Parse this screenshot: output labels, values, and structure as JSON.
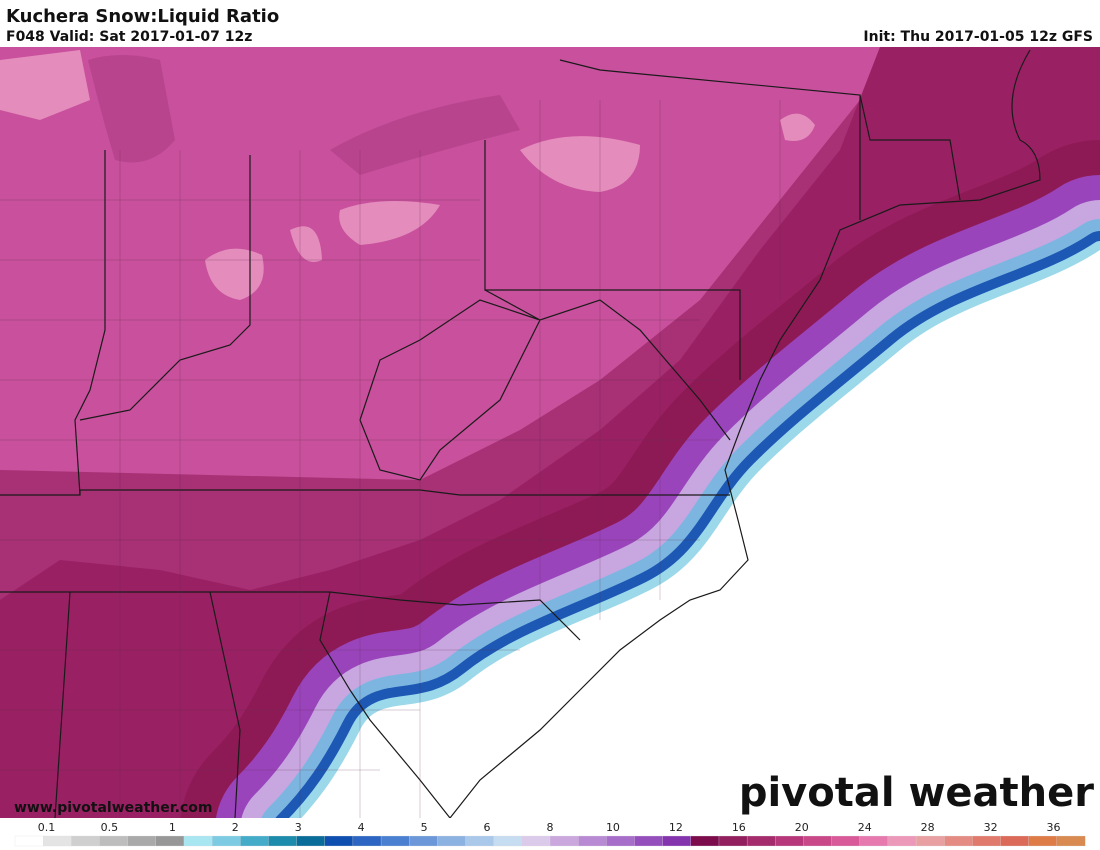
{
  "header": {
    "title": "Kuchera Snow:Liquid Ratio",
    "valid": "F048 Valid: Sat 2017-01-07 12z",
    "init": "Init: Thu 2017-01-05 12z GFS"
  },
  "watermark": {
    "url": "www.pivotalweather.com",
    "logo": "pivotal weather"
  },
  "colorbar": {
    "ticks": [
      0.1,
      0.5,
      1,
      2,
      3,
      4,
      5,
      6,
      8,
      10,
      12,
      16,
      20,
      24,
      28,
      32,
      36
    ],
    "colors": [
      "#ffffff",
      "#e4e4e4",
      "#cfcfcf",
      "#bdbdbd",
      "#a9a9a9",
      "#979797",
      "#a8e6f2",
      "#7ccbe2",
      "#44abc9",
      "#1d8bab",
      "#0a6c98",
      "#0f4fb0",
      "#2c66c2",
      "#4b80d0",
      "#6c98da",
      "#8cb2e2",
      "#aac8ea",
      "#c6dcf0",
      "#dccaea",
      "#caa8de",
      "#b98ad4",
      "#a66ec9",
      "#954fbd",
      "#8435ae",
      "#7c0c4c",
      "#92205e",
      "#a42c6c",
      "#b6387a",
      "#c84888",
      "#d85a98",
      "#e67aae",
      "#ec98b8",
      "#e8a0a2",
      "#e48c84",
      "#e07a6c",
      "#dc6a58",
      "#de7c48",
      "#d88a50"
    ]
  }
}
